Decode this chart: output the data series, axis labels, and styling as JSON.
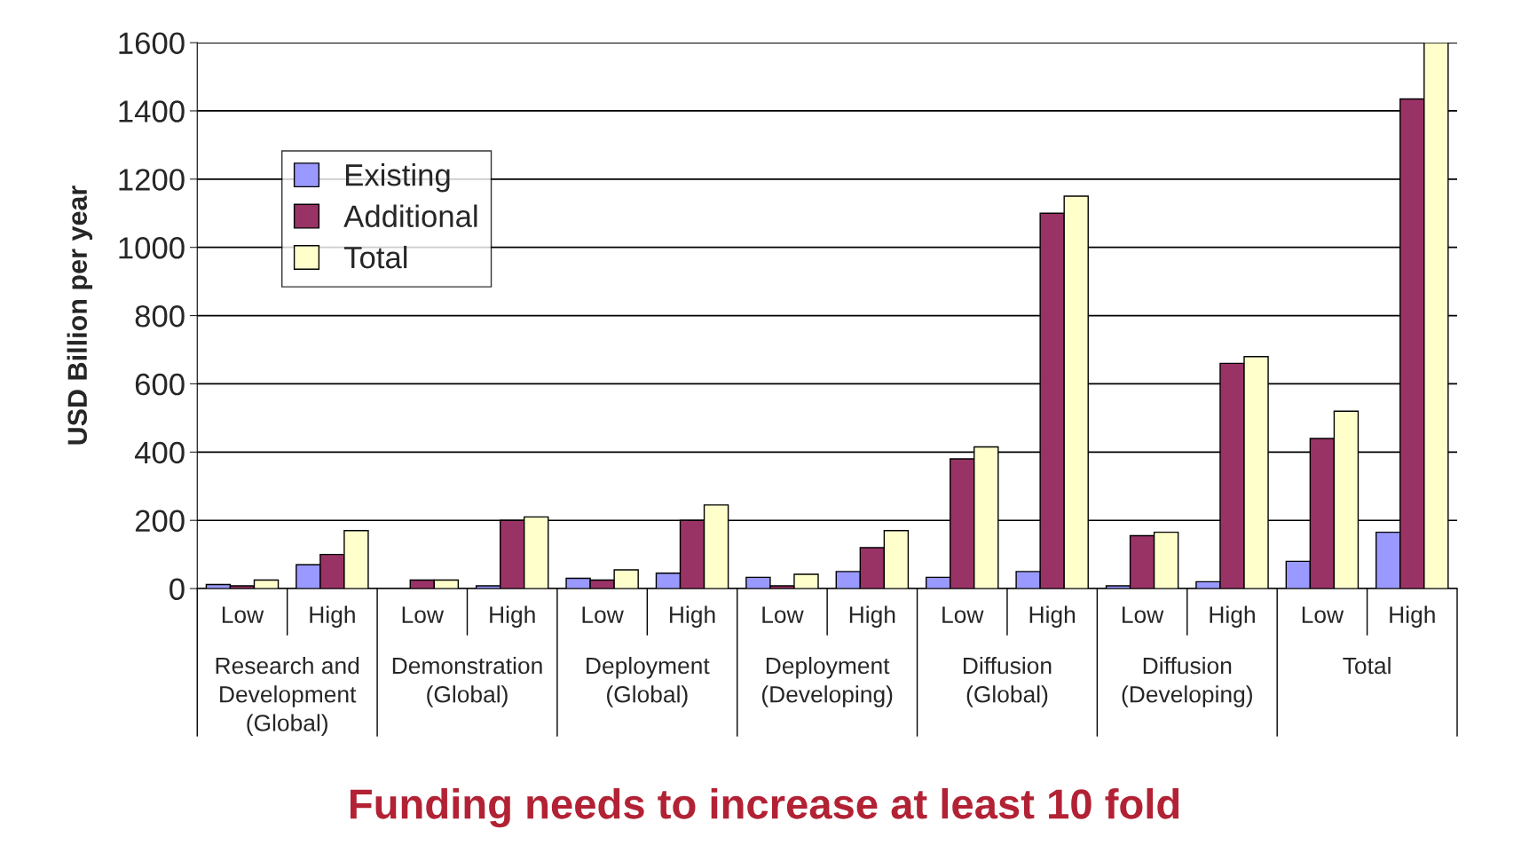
{
  "chart_data": {
    "type": "bar",
    "title": "Funding needs to increase at least 10 fold",
    "ylabel": "USD Billion per year",
    "categories": [
      "Low",
      "High",
      "Low",
      "High",
      "Low",
      "High",
      "Low",
      "High",
      "Low",
      "High",
      "Low",
      "High",
      "Low",
      "High"
    ],
    "annotations": [
      "Research and\nDevelopment\n(Global)",
      "Demonstration\n(Global)",
      "Deployment\n(Global)",
      "Deployment\n(Developing)",
      "Diffusion\n(Global)",
      "Diffusion\n(Developing)",
      "Total"
    ],
    "series": [
      {
        "name": "Existing",
        "color": "#9999ff",
        "values": [
          12,
          70,
          null,
          8,
          30,
          45,
          33,
          50,
          33,
          50,
          8,
          20,
          80,
          165
        ]
      },
      {
        "name": "Additional",
        "color": "#993366",
        "values": [
          8,
          100,
          25,
          200,
          25,
          200,
          8,
          120,
          380,
          1100,
          155,
          660,
          440,
          1435
        ]
      },
      {
        "name": "Total",
        "color": "#ffffcc",
        "values": [
          25,
          170,
          25,
          210,
          55,
          245,
          42,
          170,
          415,
          1150,
          165,
          680,
          520,
          1600
        ]
      }
    ],
    "ylim": [
      0,
      1600
    ],
    "yticks": [
      0,
      200,
      400,
      600,
      800,
      1000,
      1200,
      1400,
      1600
    ],
    "grid": "y",
    "legend": "top left"
  }
}
